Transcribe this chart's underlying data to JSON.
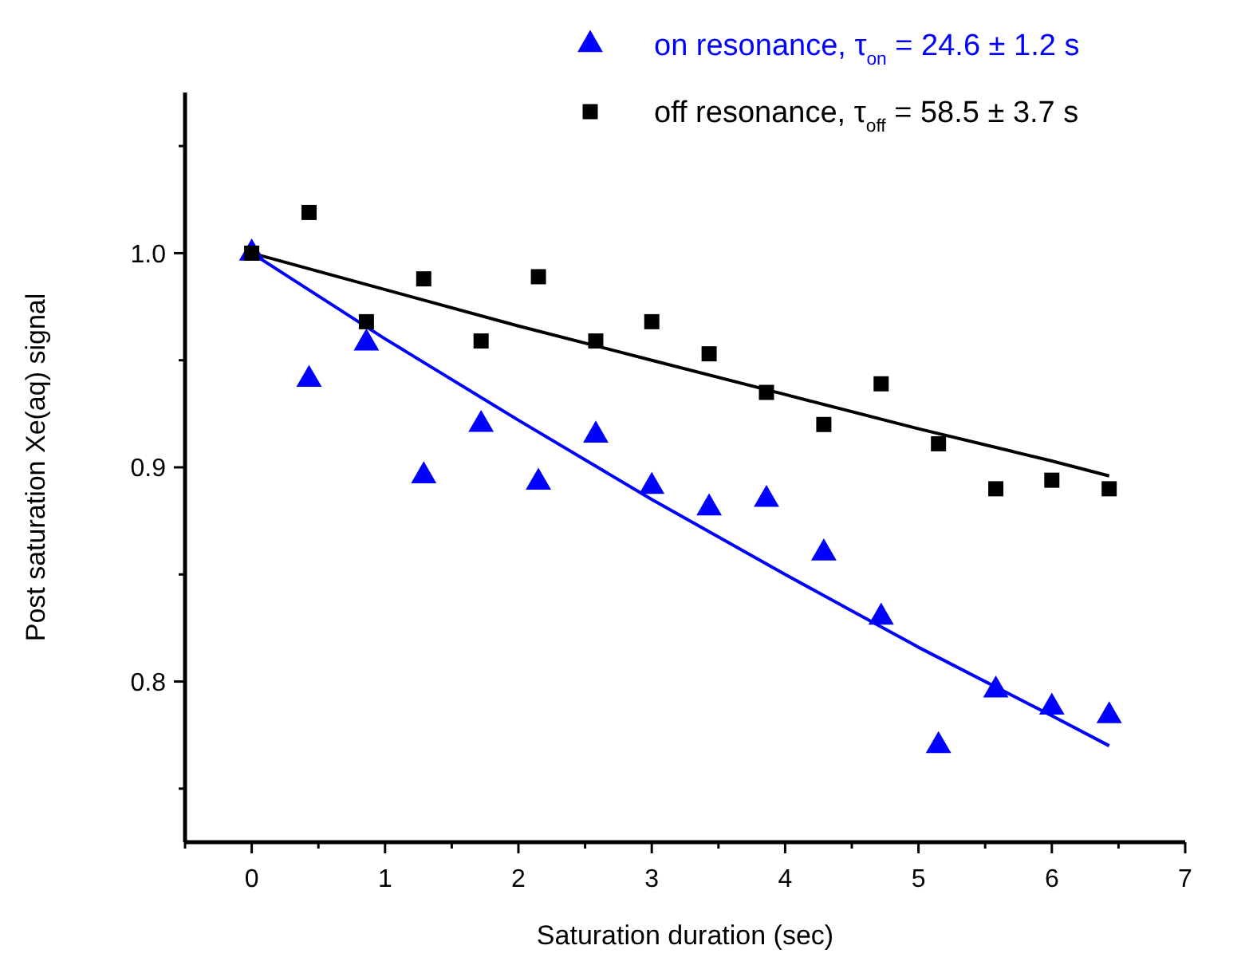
{
  "chart_data": {
    "type": "scatter",
    "xlabel": "Saturation duration (sec)",
    "ylabel": "Post saturation Xe(aq) signal",
    "xlim": [
      -0.5,
      7
    ],
    "ylim": [
      0.725,
      1.075
    ],
    "xticks": [
      0,
      1,
      2,
      3,
      4,
      5,
      6,
      7
    ],
    "yticks": [
      {
        "value": 0.8,
        "label": "0.8"
      },
      {
        "value": 0.9,
        "label": "0.9"
      },
      {
        "value": 1.0,
        "label": "1.0"
      }
    ],
    "legend": "top right",
    "grid": false,
    "series": [
      {
        "name": "on resonance, τ$_{on}$ = 24.6 ± 1.2 s",
        "marker": "triangle",
        "color": "#0000ff",
        "x": [
          0,
          0.43,
          0.86,
          1.29,
          1.72,
          2.15,
          2.58,
          3.0,
          3.43,
          3.86,
          4.29,
          4.72,
          5.15,
          5.58,
          6.0,
          6.43
        ],
        "values": [
          1.0,
          0.941,
          0.958,
          0.896,
          0.92,
          0.893,
          0.915,
          0.891,
          0.881,
          0.885,
          0.86,
          0.83,
          0.77,
          0.796,
          0.788,
          0.784
        ]
      },
      {
        "name": "off resonance, τ$_{off}$ = 58.5 ± 3.7 s",
        "marker": "square",
        "color": "#000000",
        "x": [
          0,
          0.43,
          0.86,
          1.29,
          1.72,
          2.15,
          2.58,
          3.0,
          3.43,
          3.86,
          4.29,
          4.72,
          5.15,
          5.58,
          6.0,
          6.43
        ],
        "values": [
          1.0,
          1.019,
          0.968,
          0.988,
          0.959,
          0.989,
          0.959,
          0.968,
          0.953,
          0.935,
          0.92,
          0.939,
          0.911,
          0.89,
          0.894,
          0.89
        ]
      },
      {
        "type": "line",
        "color": "#0000ff",
        "x": [
          0,
          1,
          2,
          3,
          4,
          5,
          6,
          6.43
        ],
        "values": [
          1.0,
          0.96,
          0.922,
          0.885,
          0.85,
          0.816,
          0.784,
          0.77
        ]
      },
      {
        "type": "line",
        "color": "#000000",
        "x": [
          0,
          1,
          2,
          3,
          4,
          5,
          6,
          6.43
        ],
        "values": [
          1.0,
          0.983,
          0.966,
          0.95,
          0.934,
          0.918,
          0.903,
          0.896
        ]
      }
    ]
  }
}
